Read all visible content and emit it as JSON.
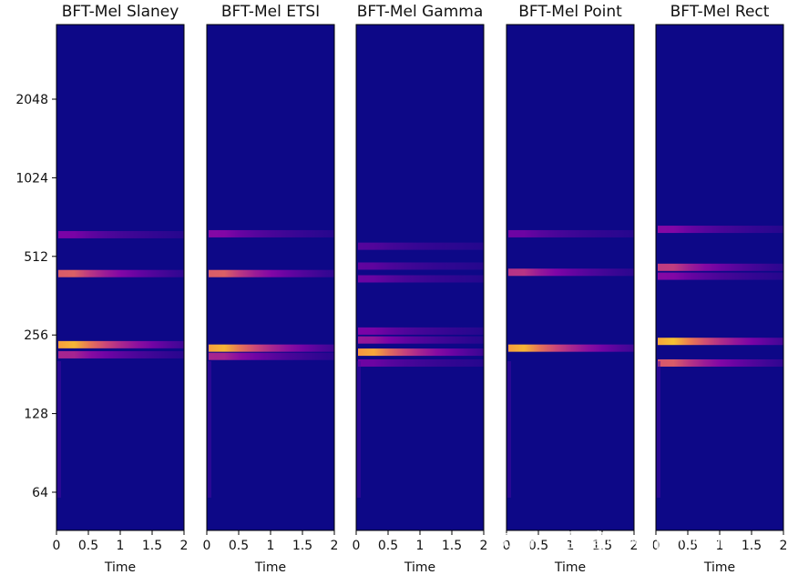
{
  "chart_data": {
    "type": "heatmap",
    "colormap": "plasma",
    "shared_y": {
      "scale": "log2",
      "ticks": [
        "64",
        "128",
        "256",
        "512",
        "1024",
        "2048"
      ]
    },
    "x_ticks": [
      "0",
      "0.5",
      "1",
      "1.5",
      "2"
    ],
    "xlim": [
      0,
      2
    ],
    "panels": [
      {
        "title": "BFT-Mel Slaney",
        "xlabel": "Time",
        "bands": [
          {
            "freq": 235,
            "intensity": 1.0,
            "decay": 0.55
          },
          {
            "freq": 215,
            "intensity": 0.55,
            "decay": 0.2
          },
          {
            "freq": 440,
            "intensity": 0.8,
            "decay": 0.35
          },
          {
            "freq": 620,
            "intensity": 0.35,
            "decay": 0.1
          }
        ]
      },
      {
        "title": "BFT-Mel ETSI",
        "xlabel": "Time",
        "bands": [
          {
            "freq": 228,
            "intensity": 1.0,
            "decay": 0.55
          },
          {
            "freq": 212,
            "intensity": 0.55,
            "decay": 0.2
          },
          {
            "freq": 440,
            "intensity": 0.8,
            "decay": 0.35
          },
          {
            "freq": 625,
            "intensity": 0.4,
            "decay": 0.1
          }
        ]
      },
      {
        "title": "BFT-Mel Gamma",
        "xlabel": "Time",
        "bands": [
          {
            "freq": 220,
            "intensity": 1.0,
            "decay": 0.5
          },
          {
            "freq": 245,
            "intensity": 0.5,
            "decay": 0.1
          },
          {
            "freq": 265,
            "intensity": 0.35,
            "decay": 0.1
          },
          {
            "freq": 200,
            "intensity": 0.3,
            "decay": 0.1
          },
          {
            "freq": 420,
            "intensity": 0.3,
            "decay": 0.05
          },
          {
            "freq": 470,
            "intensity": 0.25,
            "decay": 0.05
          },
          {
            "freq": 560,
            "intensity": 0.2,
            "decay": 0.05
          }
        ]
      },
      {
        "title": "BFT-Mel Point",
        "xlabel": "Time",
        "bands": [
          {
            "freq": 228,
            "intensity": 1.0,
            "decay": 0.55
          },
          {
            "freq": 445,
            "intensity": 0.6,
            "decay": 0.3
          },
          {
            "freq": 625,
            "intensity": 0.3,
            "decay": 0.1
          }
        ]
      },
      {
        "title": "BFT-Mel Rect",
        "xlabel": "Time",
        "bands": [
          {
            "freq": 242,
            "intensity": 1.0,
            "decay": 0.6
          },
          {
            "freq": 200,
            "intensity": 0.75,
            "decay": 0.4
          },
          {
            "freq": 465,
            "intensity": 0.65,
            "decay": 0.3
          },
          {
            "freq": 430,
            "intensity": 0.4,
            "decay": 0.1
          },
          {
            "freq": 650,
            "intensity": 0.4,
            "decay": 0.1
          }
        ]
      }
    ]
  },
  "watermark": "知乎 @吴建明wujianming"
}
